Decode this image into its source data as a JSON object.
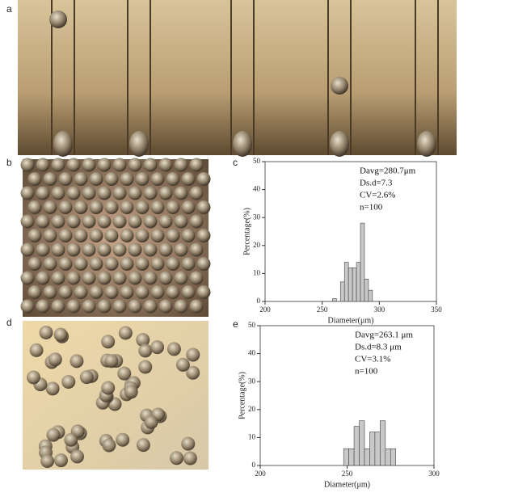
{
  "panel_labels": [
    "a",
    "b",
    "c",
    "d",
    "e"
  ],
  "chart_data": [
    {
      "type": "histogram",
      "color": "#c8c8c8",
      "bins": [
        259,
        262.5,
        266,
        269.5,
        273,
        276.5,
        280,
        283.5,
        287,
        290.5,
        294
      ],
      "values": [
        1,
        0,
        7,
        14,
        12,
        12,
        14,
        28,
        8,
        4
      ],
      "xlim": [
        200,
        350
      ],
      "xticks": [
        200,
        250,
        300,
        350
      ],
      "ylim": [
        0,
        50
      ],
      "yticks": [
        0,
        10,
        20,
        30,
        40,
        50
      ],
      "xlabel": "Diameter(μm)",
      "ylabel": "Percentage(%)",
      "annotations": [
        "Davg=280.7μm",
        "Ds.d=7.3",
        "CV=2.6%",
        "n=100"
      ]
    },
    {
      "type": "histogram",
      "color": "#c8c8c8",
      "bins": [
        248,
        251,
        254,
        257,
        260,
        263,
        266,
        269,
        272,
        275,
        278
      ],
      "values": [
        6,
        6,
        14,
        16,
        6,
        12,
        12,
        16,
        6,
        6
      ],
      "xlim": [
        200,
        300
      ],
      "xticks": [
        200,
        250,
        300
      ],
      "ylim": [
        0,
        50
      ],
      "yticks": [
        0,
        10,
        20,
        30,
        40,
        50
      ],
      "xlabel": "Diameter(μm)",
      "ylabel": "Percentage(%)",
      "annotations": [
        "Davg=263.1 μm",
        "Ds.d=8.3 μm",
        "CV=3.1%",
        "n=100"
      ]
    }
  ]
}
